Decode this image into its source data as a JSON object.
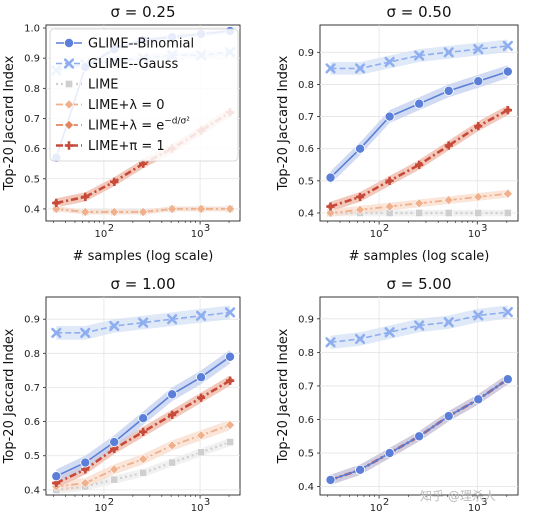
{
  "figure": {
    "watermark": "知乎 @理杀人"
  },
  "legend": {
    "placement": "top-left of first panel",
    "entries": [
      {
        "key": "glime_binomial",
        "label": "GLIME--Binomial"
      },
      {
        "key": "glime_gauss",
        "label": "GLIME--Gauss"
      },
      {
        "key": "lime",
        "label": "LIME"
      },
      {
        "key": "lime_l0",
        "label": "LIME+λ = 0"
      },
      {
        "key": "lime_lexp",
        "label": "LIME+λ = e",
        "sup": "−d/σ²"
      },
      {
        "key": "lime_pi1",
        "label": "LIME+π = 1"
      }
    ]
  },
  "series_styles": {
    "glime_binomial": {
      "color": "#5b7fd8",
      "band": "#c2cfef",
      "marker": "circle",
      "dash": "solid"
    },
    "glime_gauss": {
      "color": "#8eaef0",
      "band": "#d6e1f6",
      "marker": "x",
      "dash": "dashed"
    },
    "lime": {
      "color": "#cfcfcf",
      "band": "#ececec",
      "marker": "square",
      "dash": "dotted"
    },
    "lime_l0": {
      "color": "#f1b08c",
      "band": "#f8dccb",
      "marker": "diamond",
      "dash": "dashdot"
    },
    "lime_lexp": {
      "color": "#e5855f",
      "band": "#f4cdbb",
      "marker": "diamond",
      "dash": "dashdot"
    },
    "lime_pi1": {
      "color": "#c84a3b",
      "band": "#f0c1b5",
      "marker": "plus",
      "dash": "dashdot-heavy"
    }
  },
  "chart_data": [
    {
      "type": "line",
      "title": "σ = 0.25",
      "xlabel": "# samples (log scale)",
      "ylabel": "Top-20 Jaccard Index",
      "x_scale": "log",
      "xlim": [
        25,
        2600
      ],
      "ylim": [
        0.36,
        1.01
      ],
      "yticks": [
        0.4,
        0.5,
        0.6,
        0.7,
        0.8,
        0.9,
        1.0
      ],
      "ytick_labels": [
        "0.4",
        "0.5",
        "0.6",
        "0.7",
        "0.8",
        "0.9",
        "1.0"
      ],
      "xticks": [
        100,
        1000
      ],
      "xtick_labels": [
        "10",
        "10"
      ],
      "xtick_exps": [
        "2",
        "3"
      ],
      "x": [
        32,
        64,
        128,
        256,
        512,
        1024,
        2048
      ],
      "grid": true,
      "legend": true,
      "series": [
        {
          "key": "glime_binomial",
          "values": [
            0.57,
            0.87,
            0.93,
            0.96,
            0.97,
            0.98,
            0.99
          ],
          "band": 0.008
        },
        {
          "key": "glime_gauss",
          "values": [
            0.86,
            0.88,
            0.89,
            0.9,
            0.91,
            0.91,
            0.92
          ],
          "band": 0.01
        },
        {
          "key": "lime",
          "values": [
            0.4,
            0.39,
            0.39,
            0.39,
            0.4,
            0.4,
            0.4
          ],
          "band": 0.008
        },
        {
          "key": "lime_l0",
          "values": [
            0.4,
            0.39,
            0.39,
            0.39,
            0.4,
            0.4,
            0.4
          ],
          "band": 0.008
        },
        {
          "key": "lime_lexp",
          "values": [
            0.42,
            0.44,
            0.49,
            0.55,
            0.6,
            0.66,
            0.72
          ],
          "band": 0.015
        },
        {
          "key": "lime_pi1",
          "values": [
            0.42,
            0.44,
            0.49,
            0.55,
            0.6,
            0.66,
            0.72
          ],
          "band": 0.015
        }
      ]
    },
    {
      "type": "line",
      "title": "σ = 0.50",
      "xlabel": "# samples (log scale)",
      "ylabel": "Top-20 Jaccard Index",
      "x_scale": "log",
      "xlim": [
        25,
        2600
      ],
      "ylim": [
        0.375,
        0.985
      ],
      "yticks": [
        0.4,
        0.5,
        0.6,
        0.7,
        0.8,
        0.9
      ],
      "ytick_labels": [
        "0.4",
        "0.5",
        "0.6",
        "0.7",
        "0.8",
        "0.9"
      ],
      "xticks": [
        100,
        1000
      ],
      "xtick_labels": [
        "10",
        "10"
      ],
      "xtick_exps": [
        "2",
        "3"
      ],
      "x": [
        32,
        64,
        128,
        256,
        512,
        1024,
        2048
      ],
      "grid": true,
      "legend": false,
      "series": [
        {
          "key": "glime_binomial",
          "values": [
            0.51,
            0.6,
            0.7,
            0.74,
            0.78,
            0.81,
            0.84
          ],
          "band": 0.02
        },
        {
          "key": "glime_gauss",
          "values": [
            0.85,
            0.85,
            0.87,
            0.89,
            0.9,
            0.91,
            0.92
          ],
          "band": 0.02
        },
        {
          "key": "lime",
          "values": [
            0.4,
            0.4,
            0.4,
            0.4,
            0.4,
            0.4,
            0.4
          ],
          "band": 0.01
        },
        {
          "key": "lime_l0",
          "values": [
            0.4,
            0.41,
            0.42,
            0.43,
            0.44,
            0.45,
            0.46
          ],
          "band": 0.012
        },
        {
          "key": "lime_lexp",
          "values": [
            0.42,
            0.45,
            0.5,
            0.55,
            0.61,
            0.67,
            0.72
          ],
          "band": 0.015
        },
        {
          "key": "lime_pi1",
          "values": [
            0.42,
            0.45,
            0.5,
            0.55,
            0.61,
            0.67,
            0.72
          ],
          "band": 0.015
        }
      ]
    },
    {
      "type": "line",
      "title": "σ = 1.00",
      "xlabel": "",
      "ylabel": "Top-20 Jaccard Index",
      "x_scale": "log",
      "xlim": [
        25,
        2600
      ],
      "ylim": [
        0.385,
        0.965
      ],
      "yticks": [
        0.4,
        0.5,
        0.6,
        0.7,
        0.8,
        0.9
      ],
      "ytick_labels": [
        "0.4",
        "0.5",
        "0.6",
        "0.7",
        "0.8",
        "0.9"
      ],
      "xticks": [
        100,
        1000
      ],
      "xtick_labels": [
        "10",
        "10"
      ],
      "xtick_exps": [
        "2",
        "3"
      ],
      "x": [
        32,
        64,
        128,
        256,
        512,
        1024,
        2048
      ],
      "grid": true,
      "legend": false,
      "series": [
        {
          "key": "glime_binomial",
          "values": [
            0.44,
            0.48,
            0.54,
            0.61,
            0.68,
            0.73,
            0.79
          ],
          "band": 0.02
        },
        {
          "key": "glime_gauss",
          "values": [
            0.86,
            0.86,
            0.88,
            0.89,
            0.9,
            0.91,
            0.92
          ],
          "band": 0.02
        },
        {
          "key": "lime",
          "values": [
            0.4,
            0.41,
            0.43,
            0.45,
            0.48,
            0.51,
            0.54
          ],
          "band": 0.012
        },
        {
          "key": "lime_l0",
          "values": [
            0.41,
            0.42,
            0.46,
            0.49,
            0.53,
            0.56,
            0.59
          ],
          "band": 0.015
        },
        {
          "key": "lime_lexp",
          "values": [
            0.42,
            0.46,
            0.52,
            0.57,
            0.62,
            0.67,
            0.72
          ],
          "band": 0.015
        },
        {
          "key": "lime_pi1",
          "values": [
            0.42,
            0.46,
            0.52,
            0.57,
            0.62,
            0.67,
            0.72
          ],
          "band": 0.015
        }
      ]
    },
    {
      "type": "line",
      "title": "σ = 5.00",
      "xlabel": "",
      "ylabel": "Top-20 Jaccard Index",
      "x_scale": "log",
      "xlim": [
        25,
        2600
      ],
      "ylim": [
        0.375,
        0.965
      ],
      "yticks": [
        0.4,
        0.5,
        0.6,
        0.7,
        0.8,
        0.9
      ],
      "ytick_labels": [
        "0.4",
        "0.5",
        "0.6",
        "0.7",
        "0.8",
        "0.9"
      ],
      "xticks": [
        100,
        1000
      ],
      "xtick_labels": [
        "10",
        "10"
      ],
      "xtick_exps": [
        "2",
        "3"
      ],
      "x": [
        32,
        64,
        128,
        256,
        512,
        1024,
        2048
      ],
      "grid": true,
      "legend": false,
      "series": [
        {
          "key": "glime_binomial",
          "values": [
            0.42,
            0.45,
            0.5,
            0.55,
            0.61,
            0.66,
            0.72
          ],
          "band": 0.015
        },
        {
          "key": "glime_gauss",
          "values": [
            0.83,
            0.84,
            0.86,
            0.88,
            0.89,
            0.91,
            0.92
          ],
          "band": 0.02
        },
        {
          "key": "lime",
          "values": [
            0.42,
            0.45,
            0.5,
            0.55,
            0.61,
            0.66,
            0.72
          ],
          "band": 0.015
        },
        {
          "key": "lime_l0",
          "values": [
            0.42,
            0.45,
            0.5,
            0.55,
            0.61,
            0.66,
            0.72
          ],
          "band": 0.015
        },
        {
          "key": "lime_lexp",
          "values": [
            0.42,
            0.45,
            0.5,
            0.55,
            0.61,
            0.66,
            0.72
          ],
          "band": 0.015
        },
        {
          "key": "lime_pi1",
          "values": [
            0.42,
            0.45,
            0.5,
            0.55,
            0.61,
            0.66,
            0.72
          ],
          "band": 0.015
        }
      ]
    }
  ]
}
